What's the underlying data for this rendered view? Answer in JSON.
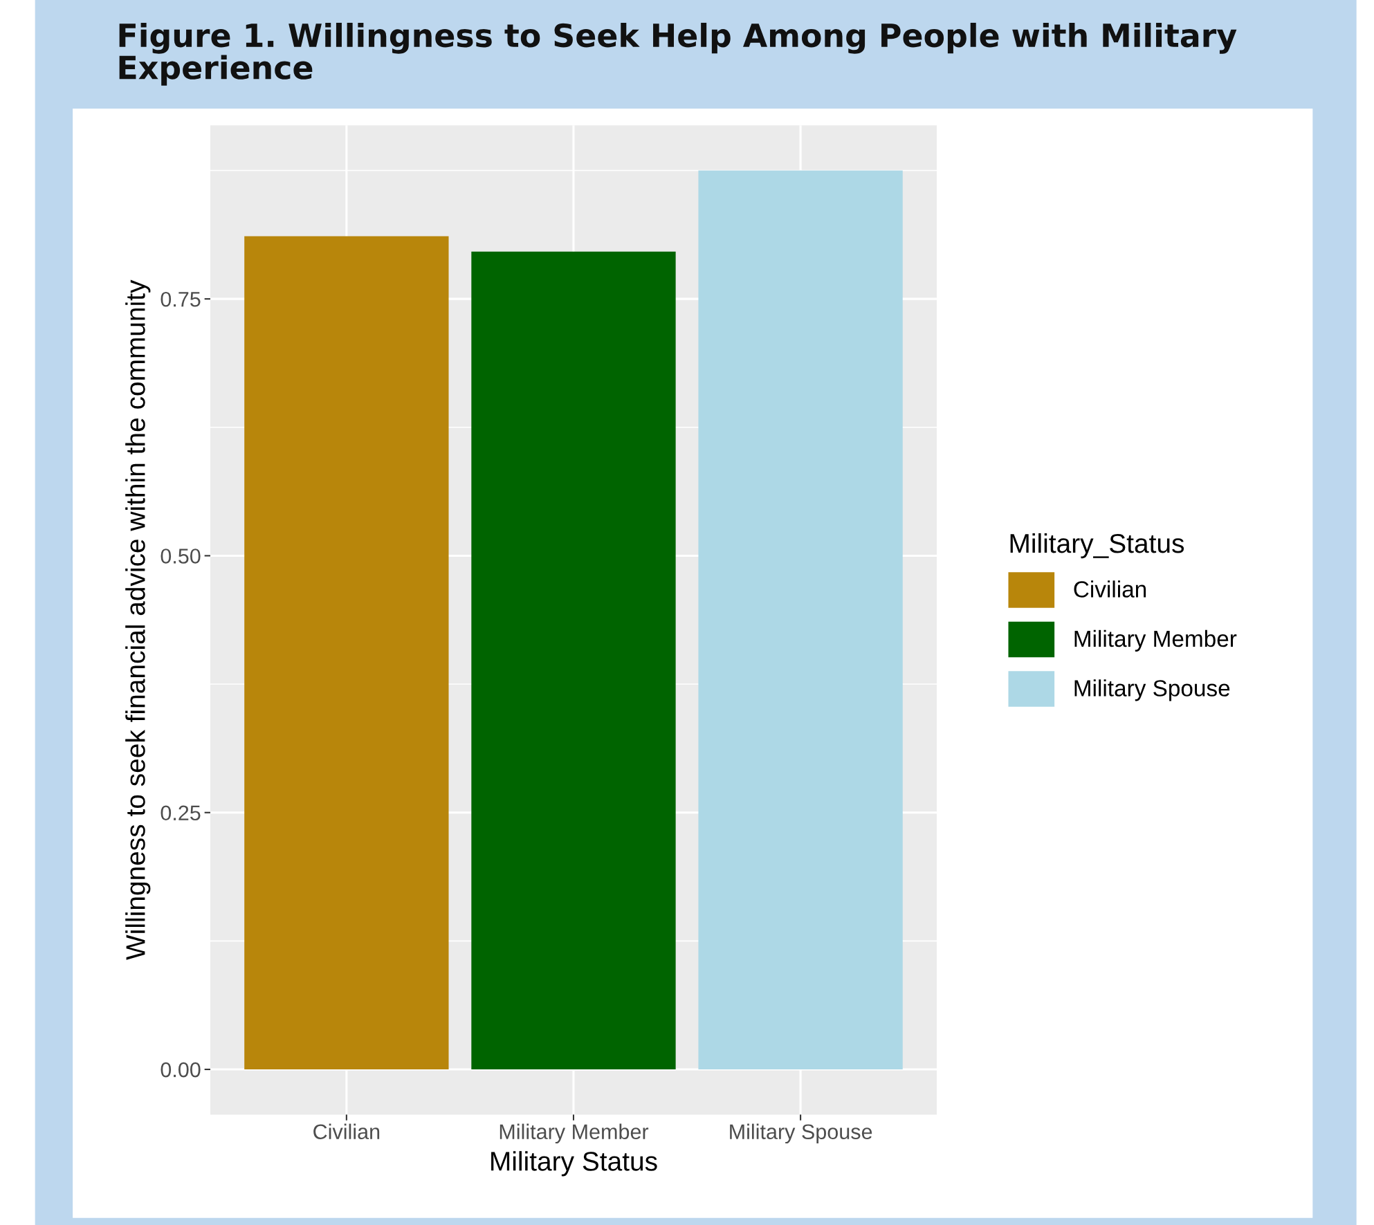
{
  "chart_data": {
    "type": "bar",
    "title": "Figure 1. Willingness to Seek Help Among People with Military Experience",
    "xlabel": "Military Status",
    "ylabel": "Willingness to seek financial advice within the community",
    "categories": [
      "Civilian",
      "Military Member",
      "Military Spouse"
    ],
    "series": [
      {
        "name": "Civilian",
        "color": "#b8860b",
        "values": [
          0.811,
          null,
          null
        ]
      },
      {
        "name": "Military Member",
        "color": "#006400",
        "values": [
          null,
          0.796,
          null
        ]
      },
      {
        "name": "Military Spouse",
        "color": "#add8e6",
        "values": [
          null,
          null,
          0.875
        ]
      }
    ],
    "legend_title": "Military_Status",
    "legend": "right",
    "ylim": [
      -0.044,
      0.919
    ],
    "yticks": [
      {
        "value": 0,
        "label": "0.00"
      },
      {
        "value": 0.125,
        "label": null
      },
      {
        "value": 0.25,
        "label": "0.25"
      },
      {
        "value": 0.375,
        "label": null
      },
      {
        "value": 0.5,
        "label": "0.50"
      },
      {
        "value": 0.625,
        "label": null
      },
      {
        "value": 0.75,
        "label": "0.75"
      },
      {
        "value": 0.875,
        "label": null
      }
    ],
    "grid": true
  }
}
